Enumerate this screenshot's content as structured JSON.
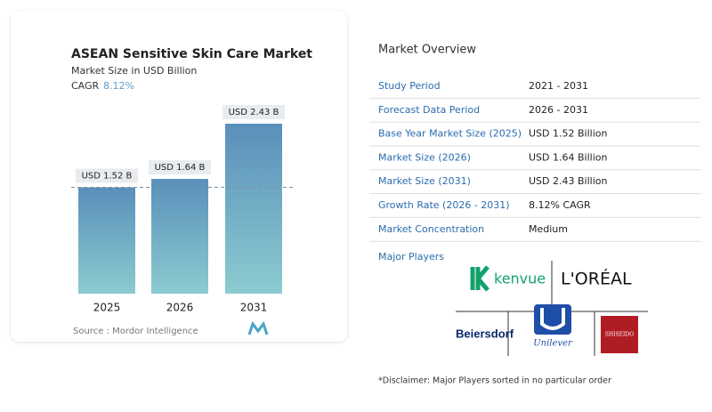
{
  "chart_data": {
    "type": "bar",
    "title": "ASEAN Sensitive Skin Care Market",
    "subtitle": "Market Size in USD Billion",
    "cagr_label": "CAGR",
    "cagr_value": "8.12%",
    "categories": [
      "2025",
      "2026",
      "2031"
    ],
    "values": [
      1.52,
      1.64,
      2.43
    ],
    "value_labels": [
      "USD 1.52 B",
      "USD 1.64 B",
      "USD 2.43 B"
    ],
    "color": "#6096bd",
    "source": "Source :  Mordor Intelligence"
  },
  "overview": {
    "title": "Market Overview",
    "rows": [
      [
        "Study Period",
        "2021 - 2031"
      ],
      [
        "Forecast Data Period",
        "2026 - 2031"
      ],
      [
        "Base Year Market Size (2025)",
        "USD 1.52 Billion"
      ],
      [
        "Market Size (2026)",
        "USD 1.64 Billion"
      ],
      [
        "Market Size (2031)",
        "USD 2.43 Billion"
      ],
      [
        "Growth Rate (2026 - 2031)",
        "8.12% CAGR"
      ],
      [
        "Market Concentration",
        "Medium"
      ]
    ]
  },
  "players": {
    "title": "Major Players",
    "names": [
      "kenvue",
      "L'ORÉAL",
      "Beiersdorf",
      "Unilever",
      "SHISEIDO"
    ]
  },
  "disclaimer": "*Disclaimer: Major Players sorted in no particular order"
}
